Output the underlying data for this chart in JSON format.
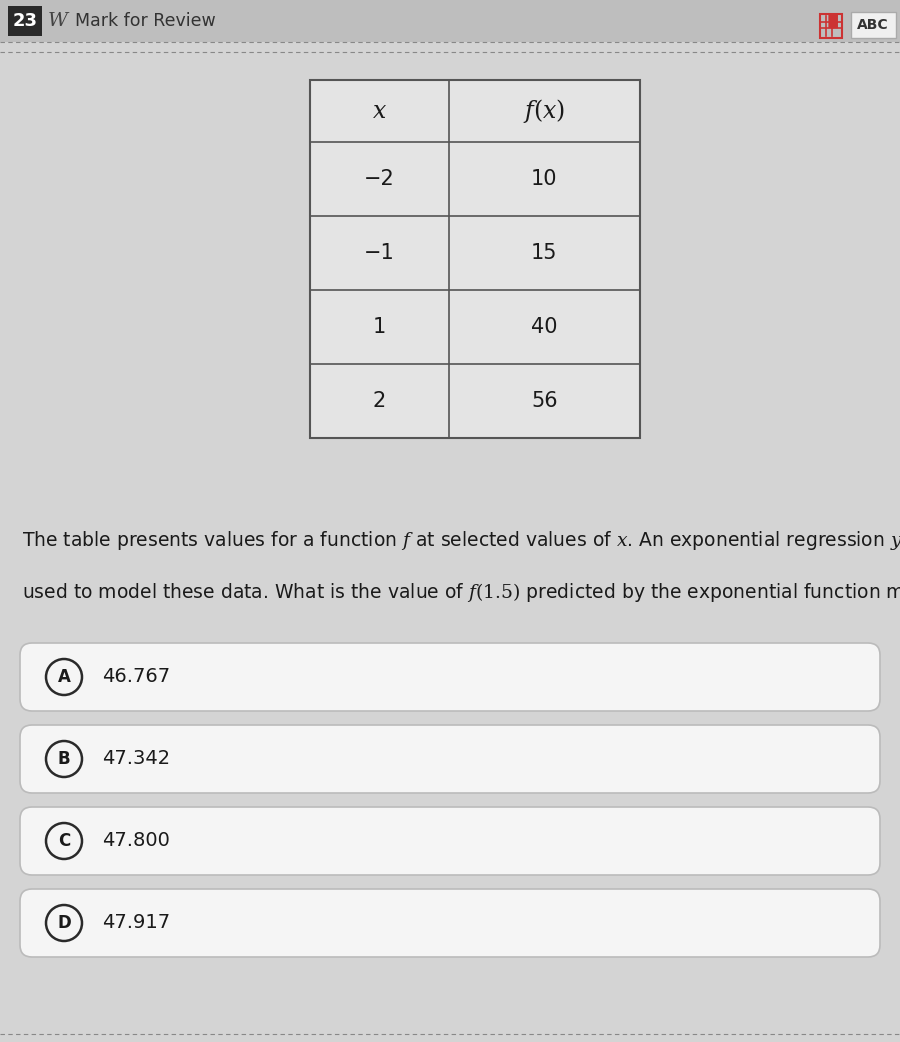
{
  "question_number": "23",
  "mark_for_review": "Mark for Review",
  "background_color": "#d4d4d4",
  "header_bar_color": "#bebebe",
  "table_x_values": [
    "−2",
    "−1",
    "1",
    "2"
  ],
  "table_fx_values": [
    "10",
    "15",
    "40",
    "56"
  ],
  "question_text_line1": "The table presents values for a function $f$ at selected values of $x$. An exponential regression $y=ab^x$ is",
  "question_text_line2": "used to model these data. What is the value of $f(1.5)$ predicted by the exponential function model?",
  "choices": [
    {
      "label": "A",
      "text": "46.767"
    },
    {
      "label": "B",
      "text": "47.342"
    },
    {
      "label": "C",
      "text": "47.800"
    },
    {
      "label": "D",
      "text": "47.917"
    }
  ],
  "choice_box_color": "#f5f5f5",
  "choice_box_edge_color": "#bbbbbb",
  "text_color": "#1a1a1a",
  "table_border_color": "#555555",
  "table_bg_color": "#e4e4e4",
  "dashed_line_color": "#888888",
  "header_text_color": "#333333"
}
